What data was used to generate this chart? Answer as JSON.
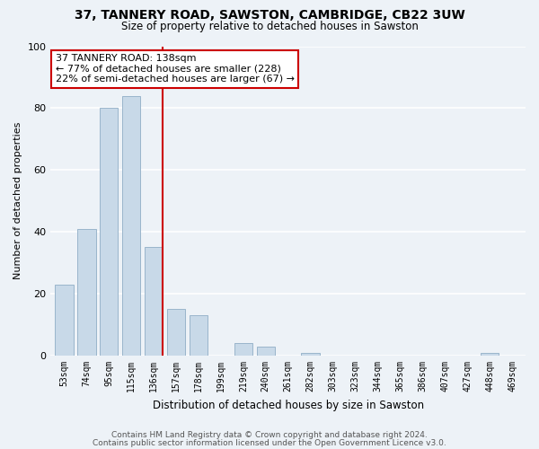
{
  "title": "37, TANNERY ROAD, SAWSTON, CAMBRIDGE, CB22 3UW",
  "subtitle": "Size of property relative to detached houses in Sawston",
  "xlabel": "Distribution of detached houses by size in Sawston",
  "ylabel": "Number of detached properties",
  "bar_labels": [
    "53sqm",
    "74sqm",
    "95sqm",
    "115sqm",
    "136sqm",
    "157sqm",
    "178sqm",
    "199sqm",
    "219sqm",
    "240sqm",
    "261sqm",
    "282sqm",
    "303sqm",
    "323sqm",
    "344sqm",
    "365sqm",
    "386sqm",
    "407sqm",
    "427sqm",
    "448sqm",
    "469sqm"
  ],
  "bar_values": [
    23,
    41,
    80,
    84,
    35,
    15,
    13,
    0,
    4,
    3,
    0,
    1,
    0,
    0,
    0,
    0,
    0,
    0,
    0,
    1,
    0
  ],
  "bar_color": "#c8d9e8",
  "bar_edge_color": "#9ab5cb",
  "highlight_line_color": "#cc0000",
  "ylim": [
    0,
    100
  ],
  "yticks": [
    0,
    20,
    40,
    60,
    80,
    100
  ],
  "annotation_line1": "37 TANNERY ROAD: 138sqm",
  "annotation_line2": "← 77% of detached houses are smaller (228)",
  "annotation_line3": "22% of semi-detached houses are larger (67) →",
  "annotation_box_color": "#ffffff",
  "annotation_box_edge": "#cc0000",
  "bg_color": "#edf2f7",
  "plot_bg_color": "#edf2f7",
  "grid_color": "#ffffff",
  "footer1": "Contains HM Land Registry data © Crown copyright and database right 2024.",
  "footer2": "Contains public sector information licensed under the Open Government Licence v3.0."
}
